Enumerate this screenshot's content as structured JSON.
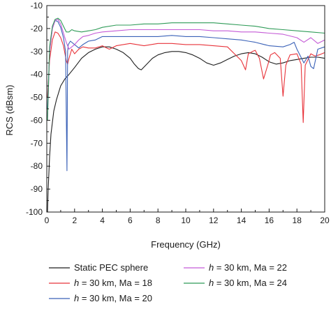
{
  "chart_data": {
    "type": "line",
    "xlabel": "Frequency (GHz)",
    "ylabel": "RCS (dBsm)",
    "xlim": [
      0,
      20
    ],
    "ylim": [
      -100,
      -10
    ],
    "xticks": [
      "0",
      "2",
      "4",
      "6",
      "8",
      "10",
      "12",
      "14",
      "16",
      "18",
      "20"
    ],
    "yticks": [
      "-10",
      "-20",
      "-30",
      "-40",
      "-50",
      "-60",
      "-70",
      "-80",
      "-90",
      "-100"
    ],
    "grid": false,
    "legend_position": "bottom",
    "legend": [
      {
        "prefix": "",
        "italic": "",
        "text": "Static PEC sphere",
        "color": "#1f1f1f"
      },
      {
        "prefix": "",
        "italic": "h",
        "text": " = 30 km, Ma = 18",
        "color": "#e8333a"
      },
      {
        "prefix": "",
        "italic": "h",
        "text": " = 30 km, Ma = 20",
        "color": "#3b62b8"
      },
      {
        "prefix": "",
        "italic": "h",
        "text": " = 30 km, Ma = 22",
        "color": "#c45ad6"
      },
      {
        "prefix": "",
        "italic": "h",
        "text": " = 30 km, Ma = 24",
        "color": "#2e9b57"
      }
    ],
    "series": [
      {
        "color": "#1f1f1f",
        "x": [
          0.05,
          0.1,
          0.2,
          0.3,
          0.5,
          0.7,
          1.0,
          1.3,
          1.6,
          2.0,
          2.5,
          3.0,
          3.5,
          4.0,
          4.5,
          5.0,
          5.5,
          6.0,
          6.3,
          6.6,
          6.8,
          7.2,
          7.6,
          8.0,
          8.5,
          9.0,
          9.5,
          10.0,
          10.5,
          11.0,
          11.5,
          12.0,
          12.5,
          13.0,
          13.5,
          14.0,
          14.5,
          15.0,
          15.5,
          16.0,
          16.5,
          17.0,
          17.5,
          18.0,
          18.5,
          19.0,
          19.5,
          20.0
        ],
        "y": [
          -100,
          -90,
          -76,
          -66,
          -56,
          -51,
          -45,
          -42,
          -40,
          -37,
          -33,
          -30.5,
          -29,
          -28,
          -28,
          -29,
          -30.5,
          -33,
          -35.5,
          -37.5,
          -38,
          -35.5,
          -33,
          -31.5,
          -30.5,
          -30,
          -30,
          -30.5,
          -31.5,
          -33,
          -35,
          -36,
          -35,
          -33.5,
          -32,
          -31,
          -30.5,
          -31,
          -32.5,
          -34.5,
          -35.5,
          -35,
          -34,
          -33.5,
          -33,
          -32.5,
          -32.5,
          -33
        ]
      },
      {
        "color": "#e8333a",
        "x": [
          0.05,
          0.2,
          0.4,
          0.6,
          0.8,
          1.0,
          1.2,
          1.4,
          1.5,
          1.6,
          1.8,
          2.0,
          2.3,
          2.6,
          3.0,
          3.5,
          4.0,
          4.3,
          4.5,
          5.0,
          6.0,
          7.0,
          8.0,
          9.0,
          10.0,
          11.0,
          12.0,
          13.0,
          13.5,
          14.0,
          14.3,
          14.5,
          14.8,
          15.0,
          15.3,
          15.6,
          15.9,
          16.1,
          16.4,
          16.8,
          17.0,
          17.2,
          17.5,
          18.0,
          18.3,
          18.45,
          18.6,
          19.0,
          19.3,
          19.6,
          20.0
        ],
        "y": [
          -50,
          -34,
          -25,
          -21.5,
          -22,
          -24,
          -27.5,
          -34,
          -35.5,
          -33,
          -29,
          -31,
          -29,
          -28,
          -28.5,
          -28.5,
          -27.5,
          -28.5,
          -29,
          -27.5,
          -26.5,
          -27.5,
          -26.5,
          -26.5,
          -27,
          -27,
          -27.5,
          -28,
          -31,
          -34,
          -38,
          -31,
          -30,
          -29.5,
          -33,
          -42,
          -36,
          -31.5,
          -30.5,
          -33,
          -49.5,
          -36,
          -31.5,
          -31,
          -35.5,
          -61,
          -36,
          -31,
          -32,
          -31.5,
          -30.5
        ]
      },
      {
        "color": "#3b62b8",
        "x": [
          0.05,
          0.2,
          0.4,
          0.6,
          0.8,
          1.0,
          1.2,
          1.35,
          1.45,
          1.5,
          1.55,
          1.7,
          2.0,
          2.3,
          2.6,
          3.0,
          3.5,
          4.0,
          5.0,
          6.0,
          7.0,
          8.0,
          9.0,
          10.0,
          11.0,
          12.0,
          13.0,
          14.0,
          14.5,
          15.0,
          16.0,
          17.0,
          17.5,
          17.8,
          18.0,
          18.5,
          18.8,
          19.0,
          19.2,
          19.5,
          20.0
        ],
        "y": [
          -55,
          -30,
          -20,
          -16.5,
          -17,
          -19.5,
          -24,
          -30,
          -82,
          -30,
          -27,
          -25.5,
          -27,
          -28.5,
          -27,
          -25.5,
          -25,
          -23.5,
          -23.5,
          -23.5,
          -23.5,
          -23.5,
          -23,
          -23.5,
          -23.5,
          -24,
          -24.5,
          -25,
          -25.5,
          -26,
          -27.5,
          -28,
          -27,
          -26,
          -29,
          -35,
          -32,
          -36.5,
          -37.5,
          -29,
          -28
        ]
      },
      {
        "color": "#c45ad6",
        "x": [
          0.05,
          0.2,
          0.4,
          0.6,
          0.8,
          1.0,
          1.2,
          1.4,
          1.6,
          1.8,
          2.0,
          2.3,
          2.6,
          3.0,
          3.5,
          4.0,
          5.0,
          6.0,
          7.0,
          8.0,
          9.0,
          10.0,
          11.0,
          12.0,
          13.0,
          14.0,
          15.0,
          16.0,
          17.0,
          18.0,
          18.5,
          19.0,
          19.5,
          20.0
        ],
        "y": [
          -60,
          -30,
          -20,
          -16.5,
          -16,
          -18,
          -22,
          -26,
          -29,
          -28,
          -27,
          -25,
          -23.5,
          -23,
          -22,
          -21.5,
          -21,
          -20.5,
          -20.5,
          -20.5,
          -20.5,
          -20.5,
          -20.5,
          -21,
          -21,
          -21.5,
          -21.5,
          -22,
          -22.5,
          -24,
          -26,
          -24,
          -26.5,
          -25
        ]
      },
      {
        "color": "#2e9b57",
        "x": [
          0.05,
          0.2,
          0.4,
          0.6,
          0.8,
          1.0,
          1.2,
          1.4,
          1.6,
          1.8,
          2.0,
          2.5,
          3.0,
          3.5,
          4.0,
          5.0,
          6.0,
          7.0,
          8.0,
          9.0,
          10.0,
          11.0,
          12.0,
          13.0,
          14.0,
          15.0,
          16.0,
          17.0,
          18.0,
          19.0,
          20.0
        ],
        "y": [
          -60,
          -28,
          -19,
          -16,
          -15.5,
          -16.5,
          -19,
          -21.5,
          -21.5,
          -20.5,
          -21,
          -21.5,
          -21,
          -20.5,
          -19.5,
          -18.5,
          -18.5,
          -18,
          -18,
          -17.5,
          -17.5,
          -17.5,
          -17.5,
          -18,
          -18.5,
          -19,
          -20,
          -20.5,
          -21,
          -21.5,
          -22
        ]
      }
    ]
  }
}
